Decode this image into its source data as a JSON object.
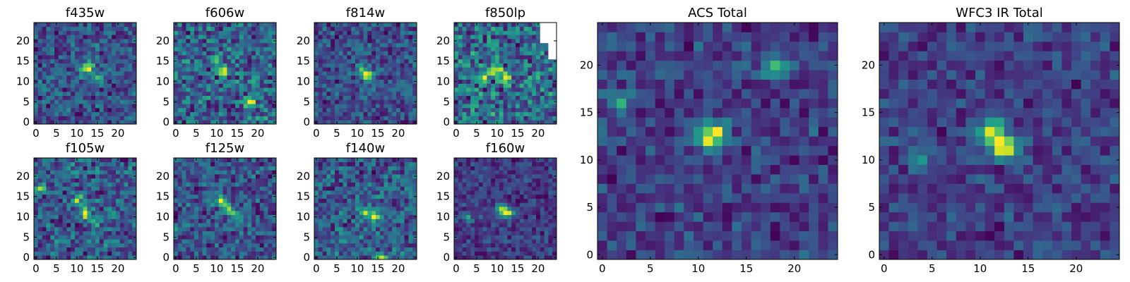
{
  "chart_data": [
    {
      "type": "heatmap",
      "title": "f435w",
      "x_ticks": [
        "0",
        "5",
        "10",
        "15",
        "20"
      ],
      "y_ticks": [
        "0",
        "5",
        "10",
        "15",
        "20"
      ],
      "grid_size": 25,
      "xlim": [
        -0.5,
        24.5
      ],
      "ylim": [
        -0.5,
        24.5
      ],
      "colormap": "viridis",
      "peaks": [
        {
          "x": 12,
          "y": 13,
          "value": 1.0
        },
        {
          "x": 13,
          "y": 14,
          "value": 0.95
        },
        {
          "x": 15,
          "y": 11,
          "value": 0.7
        }
      ],
      "noise": 0.45,
      "seed": 11
    },
    {
      "type": "heatmap",
      "title": "f606w",
      "x_ticks": [
        "0",
        "5",
        "10",
        "15",
        "20"
      ],
      "y_ticks": [
        "0",
        "5",
        "10",
        "15",
        "20"
      ],
      "grid_size": 25,
      "xlim": [
        -0.5,
        24.5
      ],
      "ylim": [
        -0.5,
        24.5
      ],
      "colormap": "viridis",
      "peaks": [
        {
          "x": 12,
          "y": 13,
          "value": 0.9
        },
        {
          "x": 18,
          "y": 5,
          "value": 0.9
        },
        {
          "x": 10,
          "y": 15,
          "value": 0.7
        }
      ],
      "noise": 0.45,
      "seed": 22
    },
    {
      "type": "heatmap",
      "title": "f814w",
      "x_ticks": [
        "0",
        "5",
        "10",
        "15",
        "20"
      ],
      "y_ticks": [
        "0",
        "5",
        "10",
        "15",
        "20"
      ],
      "grid_size": 25,
      "xlim": [
        -0.5,
        24.5
      ],
      "ylim": [
        -0.5,
        24.5
      ],
      "colormap": "viridis",
      "peaks": [
        {
          "x": 12,
          "y": 12,
          "value": 1.0
        },
        {
          "x": 13,
          "y": 11,
          "value": 0.85
        },
        {
          "x": 11,
          "y": 13,
          "value": 0.75
        }
      ],
      "noise": 0.45,
      "seed": 33
    },
    {
      "type": "heatmap",
      "title": "f850lp",
      "x_ticks": [
        "0",
        "5",
        "10",
        "15",
        "20"
      ],
      "y_ticks": [
        "0",
        "5",
        "10",
        "15",
        "20"
      ],
      "grid_size": 25,
      "xlim": [
        -0.5,
        24.5
      ],
      "ylim": [
        -0.5,
        24.5
      ],
      "colormap": "viridis",
      "peaks": [
        {
          "x": 10,
          "y": 13,
          "value": 0.9
        },
        {
          "x": 12,
          "y": 11,
          "value": 0.8
        },
        {
          "x": 7,
          "y": 11,
          "value": 0.75
        }
      ],
      "noise": 0.45,
      "seed": 44,
      "masked": [
        {
          "x0": 21,
          "x1": 24,
          "y0": 20,
          "y1": 24
        },
        {
          "x0": 23,
          "x1": 24,
          "y0": 16,
          "y1": 19
        }
      ]
    },
    {
      "type": "heatmap",
      "title": "f105w",
      "x_ticks": [
        "0",
        "5",
        "10",
        "15",
        "20"
      ],
      "y_ticks": [
        "0",
        "5",
        "10",
        "15",
        "20"
      ],
      "grid_size": 25,
      "xlim": [
        -0.5,
        24.5
      ],
      "ylim": [
        -0.5,
        24.5
      ],
      "colormap": "viridis",
      "peaks": [
        {
          "x": 12,
          "y": 11,
          "value": 1.0
        },
        {
          "x": 10,
          "y": 14,
          "value": 0.8
        },
        {
          "x": 14,
          "y": 9,
          "value": 0.7
        },
        {
          "x": 1,
          "y": 17,
          "value": 0.7
        }
      ],
      "noise": 0.4,
      "seed": 55
    },
    {
      "type": "heatmap",
      "title": "f125w",
      "x_ticks": [
        "0",
        "5",
        "10",
        "15",
        "20"
      ],
      "y_ticks": [
        "0",
        "5",
        "10",
        "15",
        "20"
      ],
      "grid_size": 25,
      "xlim": [
        -0.5,
        24.5
      ],
      "ylim": [
        -0.5,
        24.5
      ],
      "colormap": "viridis",
      "peaks": [
        {
          "x": 11,
          "y": 14,
          "value": 1.0
        },
        {
          "x": 13,
          "y": 12,
          "value": 0.85
        },
        {
          "x": 15,
          "y": 10,
          "value": 0.7
        },
        {
          "x": 0,
          "y": 7,
          "value": 0.7
        }
      ],
      "noise": 0.4,
      "seed": 66
    },
    {
      "type": "heatmap",
      "title": "f140w",
      "x_ticks": [
        "0",
        "5",
        "10",
        "15",
        "20"
      ],
      "y_ticks": [
        "0",
        "5",
        "10",
        "15",
        "20"
      ],
      "grid_size": 25,
      "xlim": [
        -0.5,
        24.5
      ],
      "ylim": [
        -0.5,
        24.5
      ],
      "colormap": "viridis",
      "peaks": [
        {
          "x": 12,
          "y": 11,
          "value": 0.75
        },
        {
          "x": 14,
          "y": 10,
          "value": 0.7
        },
        {
          "x": 16,
          "y": 0,
          "value": 1.0
        }
      ],
      "noise": 0.35,
      "seed": 77
    },
    {
      "type": "heatmap",
      "title": "f160w",
      "x_ticks": [
        "0",
        "5",
        "10",
        "15",
        "20"
      ],
      "y_ticks": [
        "0",
        "5",
        "10",
        "15",
        "20"
      ],
      "grid_size": 25,
      "xlim": [
        -0.5,
        24.5
      ],
      "ylim": [
        -0.5,
        24.5
      ],
      "colormap": "viridis",
      "peaks": [
        {
          "x": 11,
          "y": 12,
          "value": 1.0
        },
        {
          "x": 12,
          "y": 11,
          "value": 0.95
        },
        {
          "x": 13,
          "y": 11,
          "value": 0.85
        },
        {
          "x": 3,
          "y": 10,
          "value": 0.6
        }
      ],
      "noise": 0.3,
      "seed": 88
    },
    {
      "type": "heatmap",
      "title": "ACS Total",
      "x_ticks": [
        "0",
        "5",
        "10",
        "15",
        "20"
      ],
      "y_ticks": [
        "0",
        "5",
        "10",
        "15",
        "20"
      ],
      "grid_size": 25,
      "xlim": [
        -0.5,
        24.5
      ],
      "ylim": [
        -0.5,
        24.5
      ],
      "colormap": "viridis",
      "peaks": [
        {
          "x": 12,
          "y": 13,
          "value": 1.0
        },
        {
          "x": 11,
          "y": 12,
          "value": 0.95
        },
        {
          "x": 18,
          "y": 20,
          "value": 0.75
        },
        {
          "x": 2,
          "y": 16,
          "value": 0.6
        }
      ],
      "noise": 0.3,
      "seed": 99
    },
    {
      "type": "heatmap",
      "title": "WFC3 IR Total",
      "x_ticks": [
        "0",
        "5",
        "10",
        "15",
        "20"
      ],
      "y_ticks": [
        "0",
        "5",
        "10",
        "15",
        "20"
      ],
      "grid_size": 25,
      "xlim": [
        -0.5,
        24.5
      ],
      "ylim": [
        -0.5,
        24.5
      ],
      "colormap": "viridis",
      "peaks": [
        {
          "x": 12,
          "y": 12,
          "value": 0.95
        },
        {
          "x": 13,
          "y": 11,
          "value": 1.0
        },
        {
          "x": 11,
          "y": 13,
          "value": 0.9
        },
        {
          "x": 4,
          "y": 10,
          "value": 0.55
        }
      ],
      "noise": 0.25,
      "seed": 123
    }
  ],
  "colors": {
    "viridis_stops": [
      "#440154",
      "#482878",
      "#3e4989",
      "#31688e",
      "#26828e",
      "#1f9e89",
      "#35b779",
      "#6ece58",
      "#b5de2b",
      "#fde725"
    ],
    "masked": "#ffffff",
    "axis": "#000000"
  }
}
